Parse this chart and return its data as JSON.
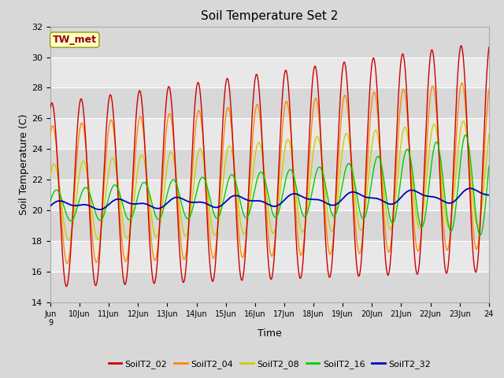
{
  "title": "Soil Temperature Set 2",
  "xlabel": "Time",
  "ylabel": "Soil Temperature (C)",
  "ylim": [
    14,
    32
  ],
  "yticks": [
    14,
    16,
    18,
    20,
    22,
    24,
    26,
    28,
    30,
    32
  ],
  "annotation": "TW_met",
  "annotation_color": "#990000",
  "annotation_bg": "#ffffcc",
  "fig_bg": "#d8d8d8",
  "plot_bg": "#e8e8e8",
  "grid_color": "#ffffff",
  "series_colors": {
    "SoilT2_02": "#cc0000",
    "SoilT2_04": "#ff8800",
    "SoilT2_08": "#cccc00",
    "SoilT2_16": "#00cc00",
    "SoilT2_32": "#0000bb"
  },
  "n_days": 15,
  "start_day": 9,
  "pts_per_day": 96
}
